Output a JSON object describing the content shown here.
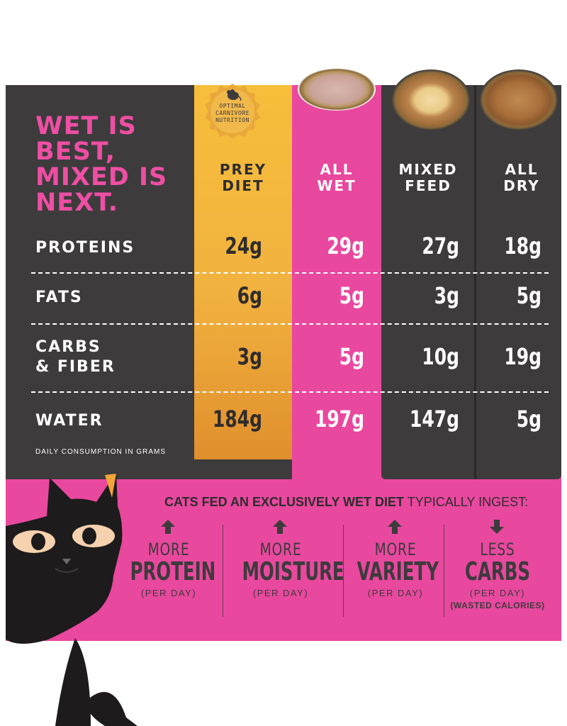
{
  "headline": {
    "line1": "WET IS",
    "line2": "BEST,",
    "line3": "MIXED IS",
    "line4": "NEXT."
  },
  "badge": {
    "line1": "OPTIMAL",
    "line2": "CARNIVORE",
    "line3": "NUTRITION",
    "icon": "mouse-icon"
  },
  "columns": [
    {
      "line1": "PREY",
      "line2": "DIET"
    },
    {
      "line1": "ALL",
      "line2": "WET"
    },
    {
      "line1": "MIXED",
      "line2": "FEED"
    },
    {
      "line1": "ALL",
      "line2": "DRY"
    }
  ],
  "rows": [
    {
      "label1": "PROTEINS",
      "label2": "",
      "values": [
        "24g",
        "29g",
        "27g",
        "18g"
      ]
    },
    {
      "label1": "FATS",
      "label2": "",
      "values": [
        "6g",
        "5g",
        "3g",
        "5g"
      ]
    },
    {
      "label1": "CARBS",
      "label2": "& FIBER",
      "values": [
        "3g",
        "5g",
        "10g",
        "19g"
      ]
    },
    {
      "label1": "WATER",
      "label2": "",
      "values": [
        "184g",
        "197g",
        "147g",
        "5g"
      ]
    }
  ],
  "footnote": "DAILY CONSUMPTION IN GRAMS",
  "tagline": {
    "bold": "CATS FED AN EXCLUSIVELY WET DIET",
    "normal": " TYPICALLY INGEST:"
  },
  "benefits": [
    {
      "direction": "up",
      "word1": "MORE",
      "word2": "PROTEIN",
      "per": "(PER DAY)",
      "extra": ""
    },
    {
      "direction": "up",
      "word1": "MORE",
      "word2": "MOISTURE",
      "per": "(PER DAY)",
      "extra": ""
    },
    {
      "direction": "up",
      "word1": "MORE",
      "word2": "VARIETY",
      "per": "(PER DAY)",
      "extra": ""
    },
    {
      "direction": "down",
      "word1": "LESS",
      "word2": "CARBS",
      "per": "(PER DAY)",
      "extra": "(WASTED CALORIES)"
    }
  ],
  "colors": {
    "pink": "#e9489f",
    "headline_pink": "#ee4ea3",
    "charcoal": "#3d3b3c",
    "gold": "#f1b23f",
    "dark_text": "#2e2c2d"
  }
}
